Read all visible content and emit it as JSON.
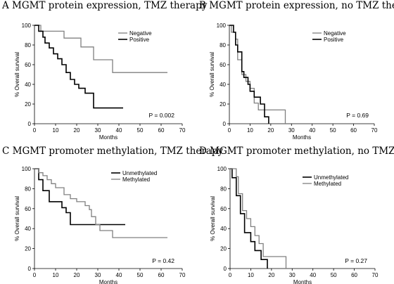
{
  "chart_data": [
    {
      "type": "line",
      "title": "A  MGMT protein expression, TMZ therapy",
      "xlabel": "Months",
      "ylabel": "% Overall survival",
      "xlim": [
        0,
        70
      ],
      "ylim": [
        0,
        100
      ],
      "xticks": [
        "0",
        "10",
        "20",
        "30",
        "40",
        "50",
        "60",
        "70"
      ],
      "yticks": [
        "0",
        "20",
        "40",
        "60",
        "80",
        "100"
      ],
      "annotation": "P = 0.002",
      "legend_position": "top-right",
      "series": [
        {
          "name": "Negative",
          "color": "#808080",
          "x": [
            0,
            3,
            3,
            14,
            14,
            22,
            22,
            28,
            28,
            31,
            31,
            37,
            37,
            63
          ],
          "y": [
            100,
            100,
            94,
            94,
            87,
            87,
            78,
            78,
            65,
            65,
            65,
            65,
            52,
            52
          ]
        },
        {
          "name": "Positive",
          "color": "#000000",
          "x": [
            0,
            2,
            2,
            4,
            4,
            5,
            5,
            7,
            7,
            9,
            9,
            11,
            11,
            13,
            13,
            15,
            15,
            17,
            17,
            19,
            19,
            21,
            21,
            23,
            23,
            24,
            24,
            28,
            28,
            42
          ],
          "y": [
            100,
            100,
            94,
            94,
            88,
            88,
            82,
            82,
            77,
            77,
            71,
            71,
            66,
            66,
            60,
            60,
            52,
            52,
            45,
            45,
            40,
            40,
            36,
            36,
            36,
            36,
            31,
            31,
            16,
            16
          ]
        }
      ]
    },
    {
      "type": "line",
      "title": "B  MGMT protein expression, no TMZ therapy",
      "xlabel": "Months",
      "ylabel": "% Overall survival",
      "xlim": [
        0,
        70
      ],
      "ylim": [
        0,
        100
      ],
      "xticks": [
        "0",
        "10",
        "20",
        "30",
        "40",
        "50",
        "60",
        "70"
      ],
      "yticks": [
        "0",
        "20",
        "40",
        "60",
        "80",
        "100"
      ],
      "annotation": "P = 0.69",
      "legend_position": "top-right",
      "series": [
        {
          "name": "Negative",
          "color": "#808080",
          "x": [
            0,
            1,
            1,
            3,
            3,
            4,
            4,
            6,
            6,
            8,
            8,
            10,
            10,
            12,
            12,
            14,
            14,
            20,
            20,
            27,
            27
          ],
          "y": [
            100,
            100,
            93,
            93,
            86,
            86,
            65,
            65,
            50,
            50,
            43,
            43,
            36,
            36,
            21,
            21,
            14,
            14,
            14,
            14,
            0
          ]
        },
        {
          "name": "Positive",
          "color": "#000000",
          "x": [
            0,
            2,
            2,
            3,
            3,
            4,
            4,
            6,
            6,
            7,
            7,
            9,
            9,
            10,
            10,
            12,
            12,
            15,
            15,
            17,
            17,
            19,
            19
          ],
          "y": [
            100,
            100,
            93,
            93,
            80,
            80,
            73,
            73,
            53,
            53,
            47,
            47,
            40,
            40,
            33,
            33,
            27,
            27,
            20,
            20,
            7,
            7,
            0
          ]
        }
      ]
    },
    {
      "type": "line",
      "title": "C  MGMT promoter methylation, TMZ therapy",
      "xlabel": "Months",
      "ylabel": "% Overall survival",
      "xlim": [
        0,
        70
      ],
      "ylim": [
        0,
        100
      ],
      "xticks": [
        "0",
        "10",
        "20",
        "30",
        "40",
        "50",
        "60",
        "70"
      ],
      "yticks": [
        "0",
        "20",
        "40",
        "60",
        "80",
        "100"
      ],
      "annotation": "P = 0.42",
      "legend_position": "top-right",
      "series": [
        {
          "name": "Unmethylated",
          "color": "#000000",
          "x": [
            0,
            2,
            2,
            4,
            4,
            7,
            7,
            13,
            13,
            15,
            15,
            17,
            17,
            43
          ],
          "y": [
            100,
            100,
            89,
            89,
            78,
            78,
            67,
            67,
            61,
            61,
            56,
            56,
            44,
            44
          ]
        },
        {
          "name": "Methylated",
          "color": "#808080",
          "x": [
            0,
            2,
            2,
            4,
            4,
            6,
            6,
            8,
            8,
            10,
            10,
            14,
            14,
            17,
            17,
            20,
            20,
            24,
            24,
            26,
            26,
            27,
            27,
            29,
            29,
            31,
            31,
            37,
            37,
            63
          ],
          "y": [
            100,
            100,
            96,
            96,
            93,
            93,
            89,
            89,
            85,
            85,
            81,
            81,
            74,
            74,
            70,
            70,
            67,
            67,
            63,
            63,
            59,
            59,
            52,
            52,
            44,
            44,
            38,
            38,
            31,
            31
          ]
        }
      ]
    },
    {
      "type": "line",
      "title": "D  MGMT promoter methylation, no TMZ therapy",
      "xlabel": "Months",
      "ylabel": "% Overall survival",
      "xlim": [
        0,
        70
      ],
      "ylim": [
        0,
        100
      ],
      "xticks": [
        "0",
        "10",
        "20",
        "30",
        "40",
        "50",
        "60",
        "70"
      ],
      "yticks": [
        "0",
        "20",
        "40",
        "60",
        "80",
        "100"
      ],
      "annotation": "P = 0.27",
      "legend_position": "top-right",
      "series": [
        {
          "name": "Unmethylated",
          "color": "#000000",
          "x": [
            0,
            1,
            1,
            3,
            3,
            5,
            5,
            7,
            7,
            10,
            10,
            12,
            12,
            15,
            15,
            18,
            18
          ],
          "y": [
            100,
            100,
            91,
            91,
            73,
            73,
            55,
            55,
            36,
            36,
            27,
            27,
            18,
            18,
            9,
            9,
            0
          ]
        },
        {
          "name": "Methylated",
          "color": "#808080",
          "x": [
            0,
            3,
            3,
            4,
            4,
            6,
            6,
            8,
            8,
            10,
            10,
            12,
            12,
            14,
            14,
            16,
            16,
            19,
            19,
            27,
            27
          ],
          "y": [
            100,
            100,
            92,
            92,
            75,
            75,
            58,
            58,
            50,
            50,
            42,
            42,
            33,
            33,
            25,
            25,
            12,
            12,
            12,
            12,
            0
          ]
        }
      ]
    }
  ]
}
